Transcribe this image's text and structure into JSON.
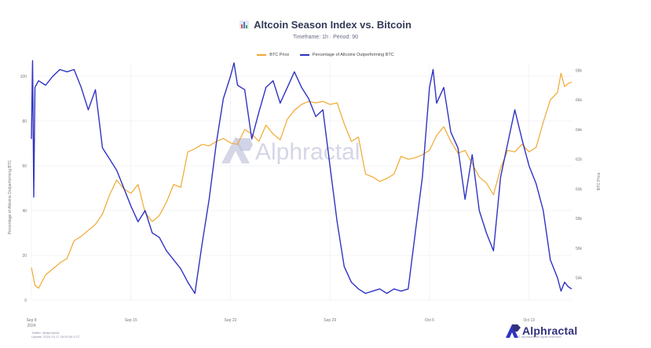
{
  "chart_data": {
    "type": "line",
    "title": "Altcoin Season Index vs. Bitcoin",
    "subtitle": "Timeframe: 1h · Period: 90",
    "xlabel": "",
    "ylabel_left": "Percentage of Altcoins Outperforming BTC",
    "ylabel_right": "BTC Price",
    "x_range": [
      "2024-09-08",
      "2024-10-16"
    ],
    "x_ticks": [
      {
        "value": "2024-09-08",
        "label": "Sep 8",
        "sublabel": "2024"
      },
      {
        "value": "2024-09-15",
        "label": "Sep 15"
      },
      {
        "value": "2024-09-22",
        "label": "Sep 22"
      },
      {
        "value": "2024-09-29",
        "label": "Sep 29"
      },
      {
        "value": "2024-10-06",
        "label": "Oct 6"
      },
      {
        "value": "2024-10-13",
        "label": "Oct 13"
      }
    ],
    "ylim_left": [
      0,
      106
    ],
    "yticks_left": [
      0,
      20,
      40,
      60,
      80,
      100
    ],
    "ylim_right": [
      52500,
      68500
    ],
    "yticks_right": [
      {
        "value": 54000,
        "label": "54k"
      },
      {
        "value": 56000,
        "label": "56k"
      },
      {
        "value": 58000,
        "label": "58k"
      },
      {
        "value": 60000,
        "label": "60k"
      },
      {
        "value": 62000,
        "label": "62k"
      },
      {
        "value": 64000,
        "label": "64k"
      },
      {
        "value": 66000,
        "label": "66k"
      },
      {
        "value": 68000,
        "label": "68k"
      }
    ],
    "grid": true,
    "legend_position": "top-center",
    "series": [
      {
        "name": "BTC Price",
        "axis": "right",
        "color": "#f0a830",
        "points": [
          [
            "2024-09-08T00:00",
            54700
          ],
          [
            "2024-09-08T06:00",
            53500
          ],
          [
            "2024-09-08T12:00",
            53300
          ],
          [
            "2024-09-09T00:00",
            54200
          ],
          [
            "2024-09-09T12:00",
            54600
          ],
          [
            "2024-09-10T00:00",
            55000
          ],
          [
            "2024-09-10T12:00",
            55300
          ],
          [
            "2024-09-11T00:00",
            56500
          ],
          [
            "2024-09-11T12:00",
            56800
          ],
          [
            "2024-09-12T00:00",
            57200
          ],
          [
            "2024-09-12T12:00",
            57600
          ],
          [
            "2024-09-13T00:00",
            58300
          ],
          [
            "2024-09-13T12:00",
            59600
          ],
          [
            "2024-09-14T00:00",
            60600
          ],
          [
            "2024-09-14T12:00",
            60000
          ],
          [
            "2024-09-15T00:00",
            59700
          ],
          [
            "2024-09-15T12:00",
            60300
          ],
          [
            "2024-09-16T00:00",
            58400
          ],
          [
            "2024-09-16T12:00",
            57800
          ],
          [
            "2024-09-17T00:00",
            58200
          ],
          [
            "2024-09-17T12:00",
            59100
          ],
          [
            "2024-09-18T00:00",
            60300
          ],
          [
            "2024-09-18T12:00",
            60100
          ],
          [
            "2024-09-19T00:00",
            62500
          ],
          [
            "2024-09-19T12:00",
            62700
          ],
          [
            "2024-09-20T00:00",
            63000
          ],
          [
            "2024-09-20T12:00",
            62900
          ],
          [
            "2024-09-21T00:00",
            63200
          ],
          [
            "2024-09-21T12:00",
            63400
          ],
          [
            "2024-09-22T00:00",
            63100
          ],
          [
            "2024-09-22T12:00",
            63000
          ],
          [
            "2024-09-23T00:00",
            64000
          ],
          [
            "2024-09-23T12:00",
            63700
          ],
          [
            "2024-09-24T00:00",
            63200
          ],
          [
            "2024-09-24T12:00",
            64300
          ],
          [
            "2024-09-25T00:00",
            63700
          ],
          [
            "2024-09-25T12:00",
            63300
          ],
          [
            "2024-09-26T00:00",
            64700
          ],
          [
            "2024-09-26T12:00",
            65300
          ],
          [
            "2024-09-27T00:00",
            65700
          ],
          [
            "2024-09-27T12:00",
            65900
          ],
          [
            "2024-09-28T00:00",
            65800
          ],
          [
            "2024-09-28T12:00",
            65900
          ],
          [
            "2024-09-29T00:00",
            65700
          ],
          [
            "2024-09-29T12:00",
            65800
          ],
          [
            "2024-09-30T00:00",
            64400
          ],
          [
            "2024-09-30T12:00",
            63200
          ],
          [
            "2024-10-01T00:00",
            63500
          ],
          [
            "2024-10-01T12:00",
            61000
          ],
          [
            "2024-10-02T00:00",
            60800
          ],
          [
            "2024-10-02T12:00",
            60500
          ],
          [
            "2024-10-03T00:00",
            60700
          ],
          [
            "2024-10-03T12:00",
            61000
          ],
          [
            "2024-10-04T00:00",
            62200
          ],
          [
            "2024-10-04T12:00",
            62000
          ],
          [
            "2024-10-05T00:00",
            62100
          ],
          [
            "2024-10-05T12:00",
            62300
          ],
          [
            "2024-10-06T00:00",
            62600
          ],
          [
            "2024-10-06T12:00",
            63600
          ],
          [
            "2024-10-07T00:00",
            64200
          ],
          [
            "2024-10-07T12:00",
            63200
          ],
          [
            "2024-10-08T00:00",
            62400
          ],
          [
            "2024-10-08T12:00",
            62600
          ],
          [
            "2024-10-09T00:00",
            61700
          ],
          [
            "2024-10-09T12:00",
            60800
          ],
          [
            "2024-10-10T00:00",
            60400
          ],
          [
            "2024-10-10T12:00",
            59600
          ],
          [
            "2024-10-11T00:00",
            61400
          ],
          [
            "2024-10-11T12:00",
            62600
          ],
          [
            "2024-10-12T00:00",
            62500
          ],
          [
            "2024-10-12T12:00",
            63000
          ],
          [
            "2024-10-13T00:00",
            62500
          ],
          [
            "2024-10-13T12:00",
            62800
          ],
          [
            "2024-10-14T00:00",
            64500
          ],
          [
            "2024-10-14T12:00",
            66000
          ],
          [
            "2024-10-15T00:00",
            66500
          ],
          [
            "2024-10-15T06:00",
            67800
          ],
          [
            "2024-10-15T12:00",
            66900
          ],
          [
            "2024-10-15T18:00",
            67100
          ],
          [
            "2024-10-16T00:00",
            67200
          ]
        ]
      },
      {
        "name": "Percentage of Altcoins Outperforming BTC",
        "axis": "left",
        "color": "#2f33c2",
        "points": [
          [
            "2024-09-08T00:00",
            72
          ],
          [
            "2024-09-08T02:00",
            107
          ],
          [
            "2024-09-08T04:00",
            46
          ],
          [
            "2024-09-08T06:00",
            95
          ],
          [
            "2024-09-08T12:00",
            98
          ],
          [
            "2024-09-09T00:00",
            96
          ],
          [
            "2024-09-09T12:00",
            100
          ],
          [
            "2024-09-10T00:00",
            103
          ],
          [
            "2024-09-10T12:00",
            102
          ],
          [
            "2024-09-11T00:00",
            103
          ],
          [
            "2024-09-11T12:00",
            95
          ],
          [
            "2024-09-12T00:00",
            85
          ],
          [
            "2024-09-12T12:00",
            94
          ],
          [
            "2024-09-13T00:00",
            68
          ],
          [
            "2024-09-13T12:00",
            63
          ],
          [
            "2024-09-14T00:00",
            58
          ],
          [
            "2024-09-14T12:00",
            50
          ],
          [
            "2024-09-15T00:00",
            42
          ],
          [
            "2024-09-15T12:00",
            35
          ],
          [
            "2024-09-16T00:00",
            40
          ],
          [
            "2024-09-16T12:00",
            30
          ],
          [
            "2024-09-17T00:00",
            28
          ],
          [
            "2024-09-17T12:00",
            22
          ],
          [
            "2024-09-18T00:00",
            18
          ],
          [
            "2024-09-18T12:00",
            14
          ],
          [
            "2024-09-19T00:00",
            8
          ],
          [
            "2024-09-19T12:00",
            3
          ],
          [
            "2024-09-20T00:00",
            25
          ],
          [
            "2024-09-20T12:00",
            45
          ],
          [
            "2024-09-21T00:00",
            70
          ],
          [
            "2024-09-21T12:00",
            90
          ],
          [
            "2024-09-22T00:00",
            100
          ],
          [
            "2024-09-22T06:00",
            106
          ],
          [
            "2024-09-22T12:00",
            96
          ],
          [
            "2024-09-23T00:00",
            94
          ],
          [
            "2024-09-23T12:00",
            72
          ],
          [
            "2024-09-24T00:00",
            84
          ],
          [
            "2024-09-24T12:00",
            95
          ],
          [
            "2024-09-25T00:00",
            98
          ],
          [
            "2024-09-25T12:00",
            88
          ],
          [
            "2024-09-26T00:00",
            95
          ],
          [
            "2024-09-26T12:00",
            102
          ],
          [
            "2024-09-27T00:00",
            95
          ],
          [
            "2024-09-27T12:00",
            90
          ],
          [
            "2024-09-28T00:00",
            82
          ],
          [
            "2024-09-28T12:00",
            85
          ],
          [
            "2024-09-29T00:00",
            60
          ],
          [
            "2024-09-29T12:00",
            35
          ],
          [
            "2024-09-30T00:00",
            15
          ],
          [
            "2024-09-30T12:00",
            8
          ],
          [
            "2024-10-01T00:00",
            5
          ],
          [
            "2024-10-01T12:00",
            3
          ],
          [
            "2024-10-02T00:00",
            4
          ],
          [
            "2024-10-02T12:00",
            5
          ],
          [
            "2024-10-03T00:00",
            3
          ],
          [
            "2024-10-03T12:00",
            5
          ],
          [
            "2024-10-04T00:00",
            4
          ],
          [
            "2024-10-04T12:00",
            5
          ],
          [
            "2024-10-05T00:00",
            30
          ],
          [
            "2024-10-05T12:00",
            55
          ],
          [
            "2024-10-06T00:00",
            95
          ],
          [
            "2024-10-06T06:00",
            103
          ],
          [
            "2024-10-06T12:00",
            88
          ],
          [
            "2024-10-07T00:00",
            95
          ],
          [
            "2024-10-07T12:00",
            75
          ],
          [
            "2024-10-08T00:00",
            68
          ],
          [
            "2024-10-08T12:00",
            45
          ],
          [
            "2024-10-09T00:00",
            65
          ],
          [
            "2024-10-09T12:00",
            40
          ],
          [
            "2024-10-10T00:00",
            30
          ],
          [
            "2024-10-10T12:00",
            22
          ],
          [
            "2024-10-11T00:00",
            55
          ],
          [
            "2024-10-11T12:00",
            70
          ],
          [
            "2024-10-12T00:00",
            85
          ],
          [
            "2024-10-12T12:00",
            72
          ],
          [
            "2024-10-13T00:00",
            60
          ],
          [
            "2024-10-13T12:00",
            52
          ],
          [
            "2024-10-14T00:00",
            40
          ],
          [
            "2024-10-14T12:00",
            18
          ],
          [
            "2024-10-15T00:00",
            10
          ],
          [
            "2024-10-15T06:00",
            4
          ],
          [
            "2024-10-15T12:00",
            8
          ],
          [
            "2024-10-15T18:00",
            6
          ],
          [
            "2024-10-16T00:00",
            5
          ]
        ]
      }
    ]
  },
  "brand": {
    "name": "Alphractal",
    "note": "© Alphractal All rights reserved"
  },
  "footer": {
    "line1": "Twitter: @alphractal",
    "line2": "Update: 2024-10-17 16:00:00 UTC"
  },
  "watermark": "Alphractal",
  "colors": {
    "btc": "#f0a830",
    "altcoin": "#2f33c2",
    "grid": "#ececf2",
    "brand": "#30317a"
  },
  "icons": {
    "title_icon": "bar-chart-icon",
    "brand_logo": "alphractal-logo-icon"
  }
}
